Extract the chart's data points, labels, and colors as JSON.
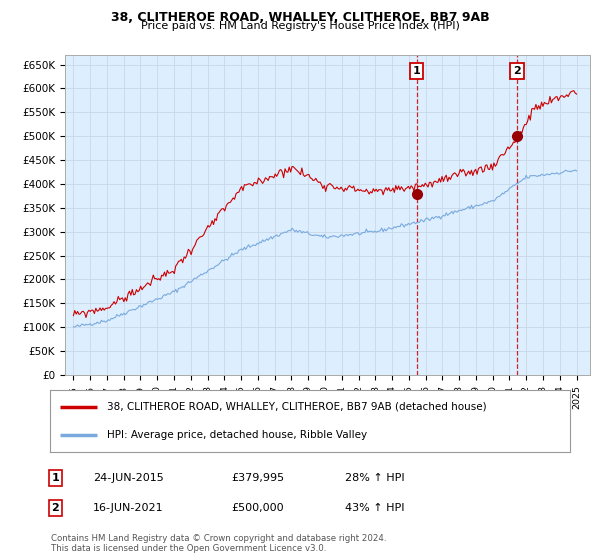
{
  "title_line1": "38, CLITHEROE ROAD, WHALLEY, CLITHEROE, BB7 9AB",
  "title_line2": "Price paid vs. HM Land Registry's House Price Index (HPI)",
  "ylim": [
    0,
    670000
  ],
  "yticks": [
    0,
    50000,
    100000,
    150000,
    200000,
    250000,
    300000,
    350000,
    400000,
    450000,
    500000,
    550000,
    600000,
    650000
  ],
  "ytick_labels": [
    "£0",
    "£50K",
    "£100K",
    "£150K",
    "£200K",
    "£250K",
    "£300K",
    "£350K",
    "£400K",
    "£450K",
    "£500K",
    "£550K",
    "£600K",
    "£650K"
  ],
  "sale1_date": 2015.47,
  "sale1_price": 379995,
  "sale1_label": "1",
  "sale2_date": 2021.45,
  "sale2_price": 500000,
  "sale2_label": "2",
  "hpi_color": "#7aaadd",
  "sale_color": "#cc0000",
  "marker_color": "#990000",
  "dashed_line_color": "#cc0000",
  "grid_color": "#c8d8e8",
  "plot_bg_color": "#ddeeff",
  "background_color": "#ffffff",
  "legend_label_red": "38, CLITHEROE ROAD, WHALLEY, CLITHEROE, BB7 9AB (detached house)",
  "legend_label_blue": "HPI: Average price, detached house, Ribble Valley",
  "table_row1": [
    "1",
    "24-JUN-2015",
    "£379,995",
    "28% ↑ HPI"
  ],
  "table_row2": [
    "2",
    "16-JUN-2021",
    "£500,000",
    "43% ↑ HPI"
  ],
  "footnote": "Contains HM Land Registry data © Crown copyright and database right 2024.\nThis data is licensed under the Open Government Licence v3.0.",
  "xlim_start": 1994.5,
  "xlim_end": 2025.8
}
